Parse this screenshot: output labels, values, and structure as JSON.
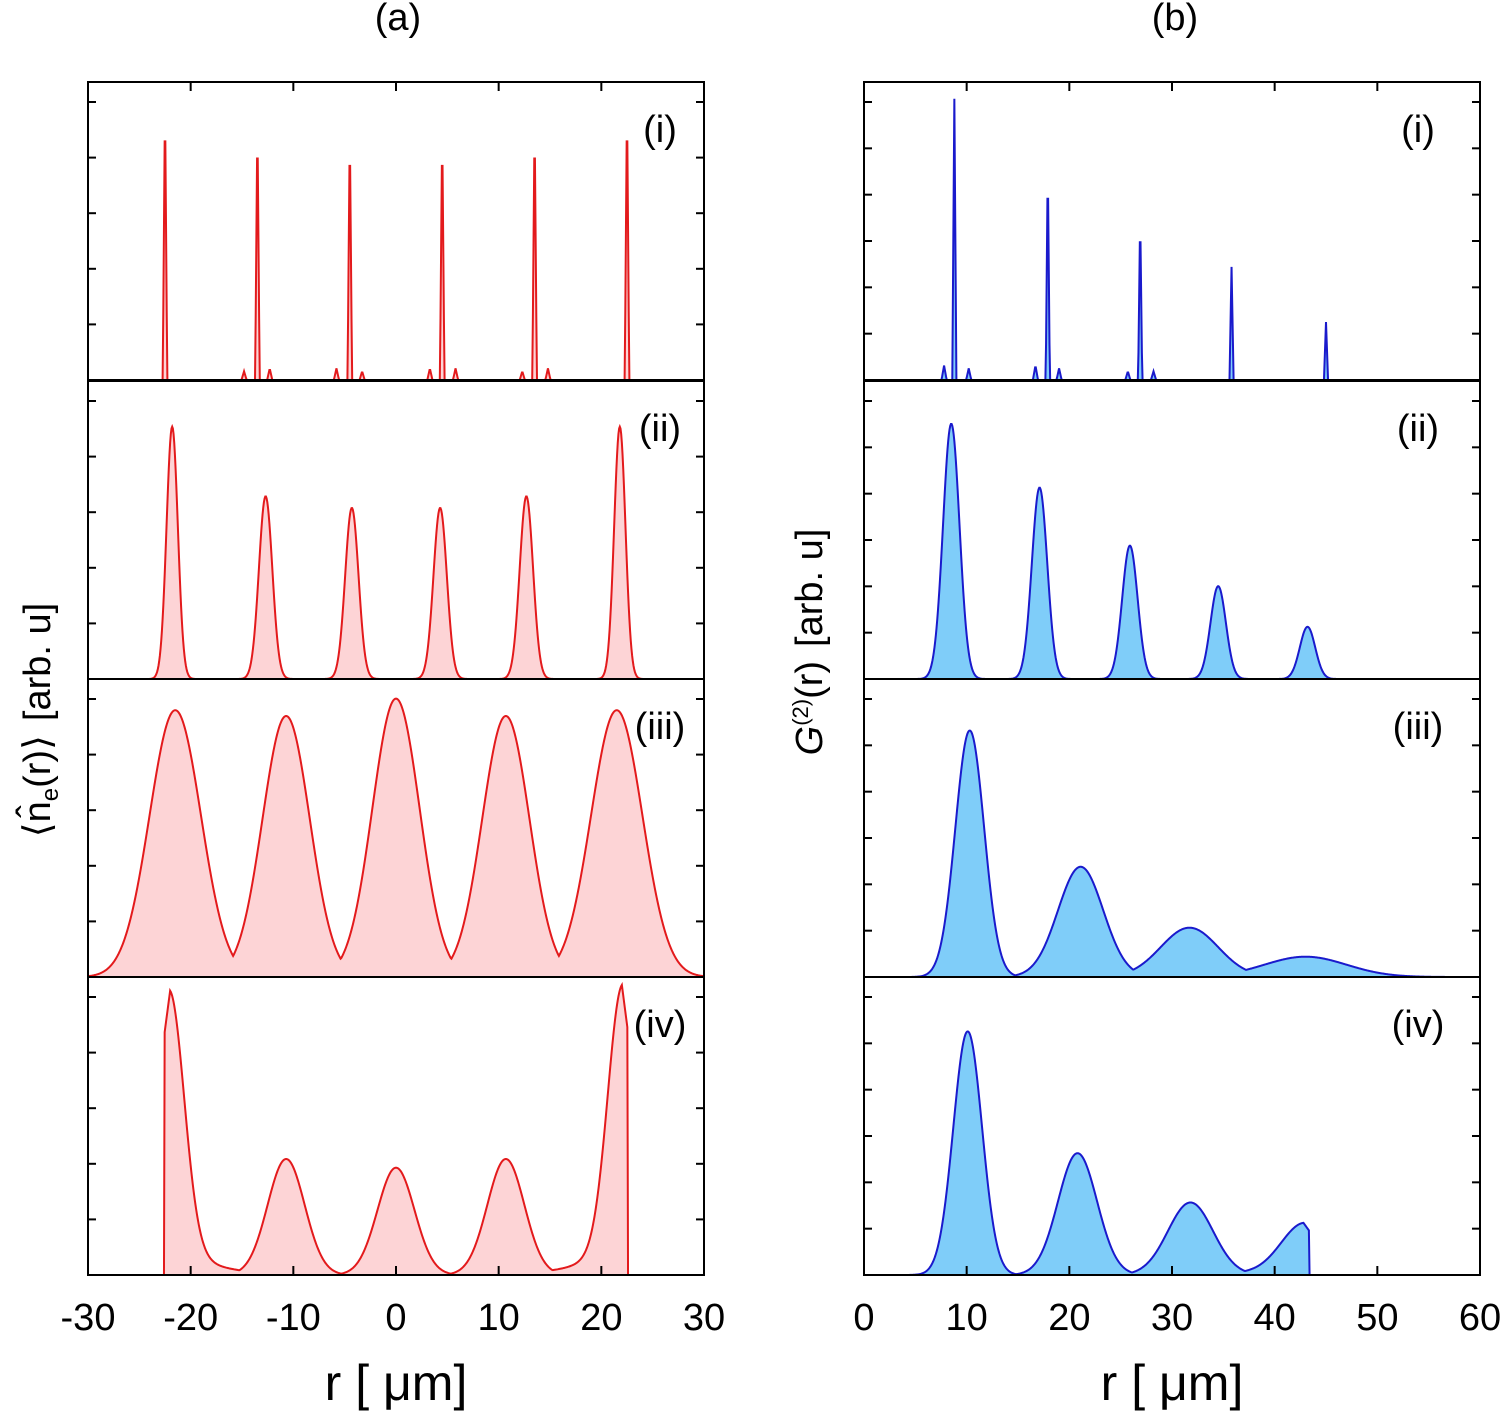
{
  "figure_labels": {
    "a": "(a)",
    "b": "(b)"
  },
  "left_ylabel": {
    "bracket_open": "⟨",
    "n": "n̂",
    "sub": "e",
    "arg": "(r)",
    "bracket_close": "⟩",
    "units": "[arb. u]"
  },
  "right_ylabel": {
    "G": "G",
    "sup": "(2)",
    "arg": "(r)",
    "units": "[arb. u]"
  },
  "colors": {
    "red_line": "#e31a1c",
    "red_fill": "#fdd4d6",
    "blue_line": "#1a1acc",
    "blue_fill": "#7fcdf9",
    "axis": "#000000"
  },
  "chart_data": [
    {
      "id": "a",
      "type": "area",
      "title": "(a)",
      "xlabel": "r [ μm]",
      "ylabel": "⟨n̂e(r)⟩ [arb. u]",
      "xlim": [
        -30,
        30
      ],
      "xticks": [
        -30,
        -20,
        -10,
        0,
        10,
        20,
        30
      ],
      "tick_labels": [
        "-30",
        "-20",
        "-10",
        "0",
        "10",
        "20",
        "30"
      ],
      "panels": [
        {
          "label": "(i)",
          "peaks": [
            {
              "x": -22.5,
              "h": 0.97,
              "w": 0.22,
              "shape": "spike"
            },
            {
              "x": -13.5,
              "h": 0.9,
              "w": 0.22,
              "shape": "spike"
            },
            {
              "x": -4.5,
              "h": 0.87,
              "w": 0.22,
              "shape": "spike"
            },
            {
              "x": 4.5,
              "h": 0.87,
              "w": 0.22,
              "shape": "spike"
            },
            {
              "x": 13.5,
              "h": 0.9,
              "w": 0.22,
              "shape": "spike"
            },
            {
              "x": 22.5,
              "h": 0.97,
              "w": 0.22,
              "shape": "spike"
            },
            {
              "x": -14.8,
              "h": 0.03,
              "w": 0.25,
              "shape": "spike"
            },
            {
              "x": -12.3,
              "h": 0.04,
              "w": 0.25,
              "shape": "spike"
            },
            {
              "x": -5.8,
              "h": 0.04,
              "w": 0.25,
              "shape": "spike"
            },
            {
              "x": -3.3,
              "h": 0.03,
              "w": 0.25,
              "shape": "spike"
            },
            {
              "x": 3.3,
              "h": 0.04,
              "w": 0.25,
              "shape": "spike"
            },
            {
              "x": 5.8,
              "h": 0.04,
              "w": 0.25,
              "shape": "spike"
            },
            {
              "x": 12.3,
              "h": 0.03,
              "w": 0.25,
              "shape": "spike"
            },
            {
              "x": 14.8,
              "h": 0.04,
              "w": 0.25,
              "shape": "spike"
            }
          ]
        },
        {
          "label": "(ii)",
          "peaks": [
            {
              "x": -21.8,
              "h": 0.87,
              "w": 0.55,
              "shape": "gauss"
            },
            {
              "x": -12.7,
              "h": 0.63,
              "w": 0.65,
              "shape": "gauss"
            },
            {
              "x": -4.3,
              "h": 0.59,
              "w": 0.65,
              "shape": "gauss"
            },
            {
              "x": 4.3,
              "h": 0.59,
              "w": 0.65,
              "shape": "gauss"
            },
            {
              "x": 12.7,
              "h": 0.63,
              "w": 0.65,
              "shape": "gauss"
            },
            {
              "x": 21.8,
              "h": 0.87,
              "w": 0.55,
              "shape": "gauss"
            }
          ]
        },
        {
          "label": "(iii)",
          "peaks": [
            {
              "x": -21.5,
              "h": 0.92,
              "w": 2.5,
              "shape": "gauss"
            },
            {
              "x": -10.7,
              "h": 0.9,
              "w": 2.3,
              "shape": "gauss"
            },
            {
              "x": 0.0,
              "h": 0.96,
              "w": 2.3,
              "shape": "gauss"
            },
            {
              "x": 10.7,
              "h": 0.9,
              "w": 2.3,
              "shape": "gauss"
            },
            {
              "x": 21.5,
              "h": 0.92,
              "w": 2.5,
              "shape": "gauss"
            }
          ]
        },
        {
          "label": "(iv)",
          "peaks": [
            {
              "x": -22.0,
              "h": 0.98,
              "w": 1.4,
              "shape": "edge"
            },
            {
              "x": -10.7,
              "h": 0.4,
              "w": 1.8,
              "shape": "gauss"
            },
            {
              "x": 0.0,
              "h": 0.37,
              "w": 1.8,
              "shape": "gauss"
            },
            {
              "x": 10.7,
              "h": 0.4,
              "w": 1.8,
              "shape": "gauss"
            },
            {
              "x": 22.0,
              "h": 1.0,
              "w": 1.4,
              "shape": "edge"
            }
          ]
        }
      ]
    },
    {
      "id": "b",
      "type": "area",
      "title": "(b)",
      "xlabel": "r [ μm]",
      "ylabel": "G(2)(r) [arb. u]",
      "xlim": [
        0,
        60
      ],
      "xticks": [
        0,
        10,
        20,
        30,
        40,
        50,
        60
      ],
      "tick_labels": [
        "0",
        "10",
        "20",
        "30",
        "40",
        "50",
        "60"
      ],
      "panels": [
        {
          "label": "(i)",
          "peaks": [
            {
              "x": 8.8,
              "h": 0.97,
              "w": 0.2,
              "shape": "spike"
            },
            {
              "x": 17.9,
              "h": 0.75,
              "w": 0.2,
              "shape": "spike"
            },
            {
              "x": 26.9,
              "h": 0.57,
              "w": 0.2,
              "shape": "spike"
            },
            {
              "x": 35.8,
              "h": 0.39,
              "w": 0.2,
              "shape": "spike"
            },
            {
              "x": 45.0,
              "h": 0.2,
              "w": 0.2,
              "shape": "spike"
            },
            {
              "x": 7.8,
              "h": 0.05,
              "w": 0.25,
              "shape": "spike"
            },
            {
              "x": 10.2,
              "h": 0.04,
              "w": 0.25,
              "shape": "spike"
            },
            {
              "x": 16.7,
              "h": 0.05,
              "w": 0.25,
              "shape": "spike"
            },
            {
              "x": 19.0,
              "h": 0.04,
              "w": 0.25,
              "shape": "spike"
            },
            {
              "x": 25.7,
              "h": 0.03,
              "w": 0.25,
              "shape": "spike"
            },
            {
              "x": 28.2,
              "h": 0.03,
              "w": 0.25,
              "shape": "spike"
            }
          ]
        },
        {
          "label": "(ii)",
          "peaks": [
            {
              "x": 8.5,
              "h": 0.88,
              "w": 0.8,
              "shape": "gauss"
            },
            {
              "x": 17.1,
              "h": 0.66,
              "w": 0.75,
              "shape": "gauss"
            },
            {
              "x": 25.9,
              "h": 0.46,
              "w": 0.75,
              "shape": "gauss"
            },
            {
              "x": 34.5,
              "h": 0.32,
              "w": 0.75,
              "shape": "gauss"
            },
            {
              "x": 43.2,
              "h": 0.18,
              "w": 0.75,
              "shape": "gauss"
            }
          ]
        },
        {
          "label": "(iii)",
          "peaks": [
            {
              "x": 10.3,
              "h": 0.85,
              "w": 1.4,
              "shape": "gauss"
            },
            {
              "x": 21.1,
              "h": 0.38,
              "w": 2.2,
              "shape": "gauss"
            },
            {
              "x": 31.7,
              "h": 0.17,
              "w": 2.8,
              "shape": "gauss"
            },
            {
              "x": 43.0,
              "h": 0.07,
              "w": 4.0,
              "shape": "gauss"
            }
          ]
        },
        {
          "label": "(iv)",
          "peaks": [
            {
              "x": 10.1,
              "h": 0.84,
              "w": 1.4,
              "shape": "gauss"
            },
            {
              "x": 20.8,
              "h": 0.42,
              "w": 1.9,
              "shape": "gauss"
            },
            {
              "x": 31.8,
              "h": 0.25,
              "w": 2.2,
              "shape": "gauss"
            },
            {
              "x": 42.8,
              "h": 0.18,
              "w": 2.2,
              "shape": "edge"
            }
          ]
        }
      ]
    }
  ]
}
